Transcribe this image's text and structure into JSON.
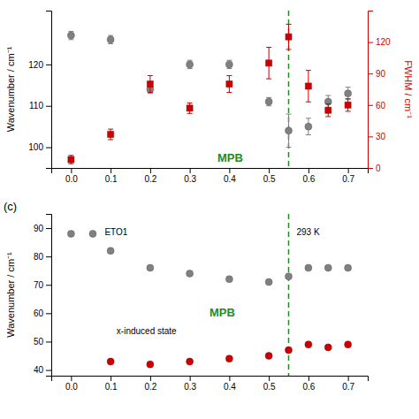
{
  "chart_data": [
    {
      "type": "scatter",
      "ylabel": "Wavenumber / cm⁻¹",
      "y2label": "FWHM / cm⁻¹",
      "xlim": [
        -0.05,
        0.75
      ],
      "xticks": [
        {
          "value": 0.0,
          "label": "0.0"
        },
        0.1,
        0.2,
        0.3,
        0.4,
        0.5,
        0.6,
        0.7
      ],
      "ylim": [
        95,
        133
      ],
      "yticks": [
        100,
        110,
        120
      ],
      "y2lim": [
        0,
        150
      ],
      "y2ticks": [
        0,
        30,
        60,
        90,
        120
      ],
      "grid": false,
      "series": [
        {
          "color": "#808080",
          "marker": "circle",
          "x": [
            0.0,
            0.1,
            0.2,
            0.3,
            0.4,
            0.5,
            0.55,
            0.6,
            0.65,
            0.7
          ],
          "values": [
            127,
            126,
            114,
            120,
            120,
            111,
            104,
            105,
            111,
            113
          ],
          "error": [
            1.0,
            1.0,
            1.0,
            1.0,
            1.0,
            1.0,
            4.0,
            2.0,
            1.5,
            1.5
          ]
        },
        {
          "color": "#cc0000",
          "marker": "square",
          "axis": "y2",
          "x": [
            0.0,
            0.1,
            0.2,
            0.3,
            0.4,
            0.5,
            0.55,
            0.6,
            0.65,
            0.7
          ],
          "values": [
            8,
            32,
            80,
            57,
            80,
            100,
            125,
            78,
            55,
            60
          ],
          "error": [
            4,
            5,
            8,
            5,
            8,
            15,
            12,
            15,
            6,
            6
          ]
        }
      ],
      "annotations": [
        {
          "type": "vline",
          "x": 0.55,
          "color": "#228B22",
          "line_style": "dashed"
        },
        {
          "text": "MPB",
          "x": 0.37,
          "y": 96.5,
          "color": "#228B22"
        }
      ]
    },
    {
      "type": "scatter",
      "ylabel": "Wavenumber / cm⁻¹",
      "panel_label": "(c)",
      "xlim": [
        -0.05,
        0.75
      ],
      "xticks": [
        {
          "value": 0.0,
          "label": "0.0"
        },
        0.1,
        0.2,
        0.3,
        0.4,
        0.5,
        0.6,
        0.7
      ],
      "ylim": [
        38,
        95
      ],
      "yticks": [
        40,
        50,
        60,
        70,
        80,
        90
      ],
      "grid": false,
      "series": [
        {
          "color": "#808080",
          "marker": "circle",
          "x": [
            0.0,
            0.1,
            0.2,
            0.3,
            0.4,
            0.5,
            0.55,
            0.6,
            0.65,
            0.7
          ],
          "values": [
            88,
            82,
            76,
            74,
            72,
            71,
            73,
            76,
            76,
            76
          ]
        },
        {
          "color": "#cc0000",
          "marker": "circle",
          "x": [
            0.1,
            0.2,
            0.3,
            0.4,
            0.5,
            0.55,
            0.6,
            0.65,
            0.7
          ],
          "values": [
            43,
            42,
            43,
            44,
            45,
            47,
            49,
            48,
            49
          ]
        }
      ],
      "annotations": [
        {
          "type": "vline",
          "x": 0.55,
          "color": "#228B22",
          "line_style": "dashed"
        },
        {
          "text": "MPB",
          "x": 0.35,
          "y": 59,
          "color": "#228B22"
        },
        {
          "type": "marker",
          "x": 0.055,
          "y": 88,
          "color": "#808080",
          "marker": "circle"
        },
        {
          "text": "ETO1",
          "x": 0.085,
          "y": 87.5
        },
        {
          "text": "293 K",
          "x": 0.57,
          "y": 87.5
        },
        {
          "text": "x-induced state",
          "x": 0.115,
          "y": 52.5
        }
      ]
    }
  ]
}
